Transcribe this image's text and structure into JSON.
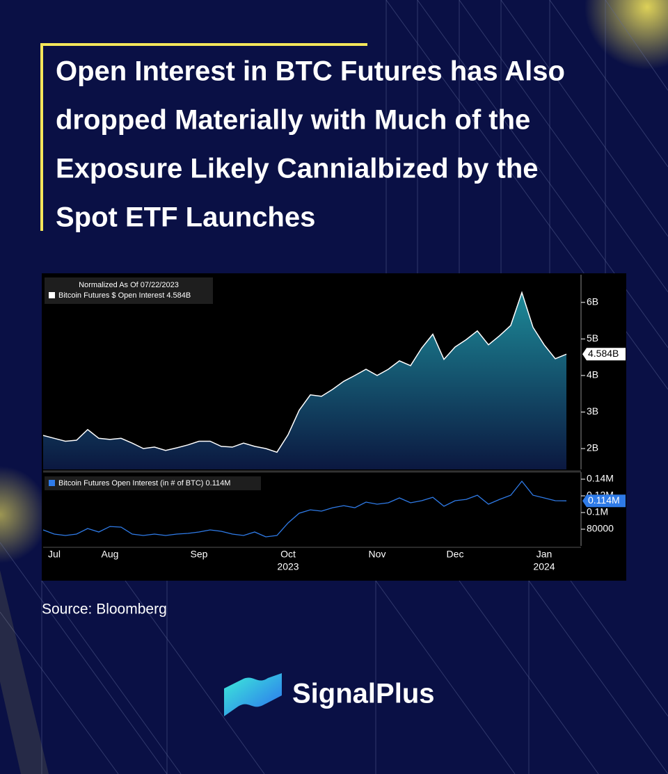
{
  "title_lines": [
    "Open Interest in BTC Futures has Also",
    "dropped Materially with Much of the",
    "Exposure Likely Cannialbized by the",
    "Spot ETF Launches"
  ],
  "source": "Source: Bloomberg",
  "brand": "SignalPlus",
  "chart_data": [
    {
      "type": "area",
      "note": "Normalized As Of 07/22/2023",
      "categories": [
        null,
        "Jul",
        null,
        null,
        null,
        null,
        "Aug",
        null,
        null,
        null,
        null,
        null,
        null,
        null,
        "Sep",
        null,
        null,
        null,
        null,
        null,
        null,
        null,
        "Oct",
        null,
        null,
        null,
        null,
        null,
        null,
        null,
        "Nov",
        null,
        null,
        null,
        null,
        null,
        null,
        "Dec",
        null,
        null,
        null,
        null,
        null,
        null,
        null,
        "Jan",
        null,
        null
      ],
      "series": [
        {
          "name": "Bitcoin Futures $ Open Interest",
          "color": "#ffffff",
          "values": [
            2.36,
            2.28,
            2.2,
            2.23,
            2.52,
            2.28,
            2.25,
            2.28,
            2.15,
            2.0,
            2.04,
            1.95,
            2.02,
            2.1,
            2.2,
            2.2,
            2.06,
            2.04,
            2.15,
            2.06,
            2.0,
            1.9,
            2.38,
            3.05,
            3.47,
            3.43,
            3.62,
            3.84,
            4.0,
            4.17,
            4.0,
            4.17,
            4.4,
            4.27,
            4.75,
            5.13,
            4.44,
            4.78,
            4.98,
            5.22,
            4.84,
            5.09,
            5.37,
            6.27,
            5.32,
            4.84,
            4.46,
            4.584
          ],
          "value_labels": [
            null,
            null,
            null,
            null,
            null,
            null,
            null,
            null,
            null,
            null,
            null,
            null,
            null,
            null,
            null,
            null,
            null,
            null,
            null,
            null,
            null,
            null,
            null,
            null,
            null,
            null,
            null,
            null,
            null,
            null,
            null,
            null,
            null,
            null,
            null,
            null,
            null,
            null,
            null,
            null,
            null,
            null,
            null,
            null,
            null,
            null,
            null,
            "4.584B"
          ]
        }
      ],
      "ylim": [
        1.43,
        6.72
      ],
      "yticks": [
        {
          "value": 2,
          "label": "2B"
        },
        {
          "value": 3,
          "label": "3B"
        },
        {
          "value": 4,
          "label": "4B"
        },
        {
          "value": 5,
          "label": "5B"
        },
        {
          "value": 6,
          "label": "6B"
        }
      ]
    },
    {
      "type": "line",
      "categories": [
        null,
        "Jul",
        null,
        null,
        null,
        null,
        "Aug",
        null,
        null,
        null,
        null,
        null,
        null,
        null,
        "Sep",
        null,
        null,
        null,
        null,
        null,
        null,
        null,
        "Oct",
        null,
        null,
        null,
        null,
        null,
        null,
        null,
        "Nov",
        null,
        null,
        null,
        null,
        null,
        null,
        "Dec",
        null,
        null,
        null,
        null,
        null,
        null,
        null,
        "Jan",
        null,
        null
      ],
      "year_labels": [
        {
          "label": "2023",
          "category": "Oct"
        },
        {
          "label": "2024",
          "category": "Jan"
        }
      ],
      "series": [
        {
          "name": "Bitcoin Futures Open Interest (in # of BTC)",
          "color": "#2f7be8",
          "values": [
            79200,
            74200,
            72500,
            74200,
            80800,
            76700,
            83300,
            82500,
            74200,
            72500,
            74200,
            72500,
            74200,
            75000,
            76700,
            79200,
            77500,
            74200,
            72500,
            76700,
            70800,
            72500,
            87500,
            99200,
            103300,
            101700,
            105800,
            108300,
            105800,
            112500,
            110000,
            111700,
            117500,
            111700,
            114200,
            118300,
            107500,
            114200,
            115800,
            120800,
            110000,
            115800,
            120800,
            137500,
            120800,
            117500,
            114200,
            114000
          ],
          "value_labels": [
            null,
            null,
            null,
            null,
            null,
            null,
            null,
            null,
            null,
            null,
            null,
            null,
            null,
            null,
            null,
            null,
            null,
            null,
            null,
            null,
            null,
            null,
            null,
            null,
            null,
            null,
            null,
            null,
            null,
            null,
            null,
            null,
            null,
            null,
            null,
            null,
            null,
            null,
            null,
            null,
            null,
            null,
            null,
            null,
            null,
            null,
            null,
            "0.114M"
          ]
        }
      ],
      "ylim": [
        60000,
        146700
      ],
      "yticks": [
        80000,
        {
          "value": 100000,
          "label": "0.1M"
        },
        {
          "value": 120000,
          "label": "0.12M"
        },
        {
          "value": 140000,
          "label": "0.14M"
        }
      ]
    }
  ]
}
